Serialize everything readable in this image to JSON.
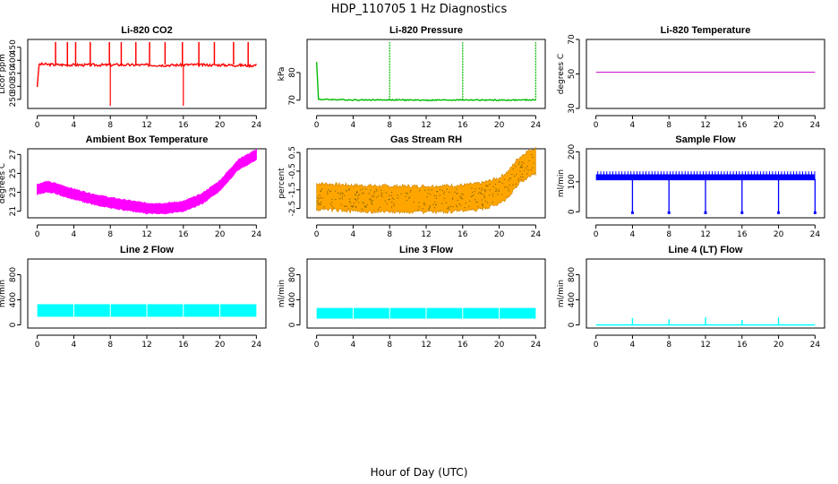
{
  "title": "HDP_110705  1 Hz Diagnostics",
  "xlabel": "Hour of Day (UTC)",
  "chart_data": [
    {
      "type": "line",
      "title": "Li-820 CO2",
      "ylabel": "Licor ppm",
      "color": "#ff0000",
      "xlim": [
        0,
        24
      ],
      "ylim": [
        215,
        480
      ],
      "xticks": [
        0,
        4,
        8,
        12,
        16,
        20,
        24
      ],
      "yticks": [
        250,
        300,
        350,
        400,
        450
      ],
      "series": [
        {
          "x": [
            0,
            0.2,
            2,
            4,
            6,
            8,
            8.5,
            10,
            12,
            14,
            16,
            16.5,
            18,
            20,
            22,
            23.5,
            24
          ],
          "y": [
            300,
            385,
            383,
            382,
            382,
            382,
            383,
            382,
            382,
            381,
            382,
            383,
            382,
            382,
            381,
            380,
            382
          ]
        }
      ]
    },
    {
      "type": "line",
      "title": "Li-820 Pressure",
      "ylabel": "kPa",
      "color": "#00bb00",
      "xlim": [
        0,
        24
      ],
      "ylim": [
        67,
        92
      ],
      "xticks": [
        0,
        4,
        8,
        12,
        16,
        20,
        24
      ],
      "yticks": [
        70,
        80
      ],
      "series": [
        {
          "x": [
            0,
            0.2,
            4,
            8,
            12,
            16,
            20,
            24
          ],
          "y": [
            84,
            70.3,
            70.1,
            70.1,
            70.0,
            70.1,
            70.0,
            70.1
          ]
        }
      ]
    },
    {
      "type": "line",
      "title": "Li-820 Temperature",
      "ylabel": "degrees C",
      "color": "#cc00cc",
      "xlim": [
        0,
        24
      ],
      "ylim": [
        30,
        70
      ],
      "xticks": [
        0,
        4,
        8,
        12,
        16,
        20,
        24
      ],
      "yticks": [
        30,
        50,
        70
      ],
      "series": [
        {
          "x": [
            0,
            24
          ],
          "y": [
            51,
            51
          ]
        }
      ]
    },
    {
      "type": "line",
      "title": "Ambient Box Temperature",
      "ylabel": "degrees C",
      "color": "#ff00ff",
      "xlim": [
        0,
        24
      ],
      "ylim": [
        20.3,
        27.6
      ],
      "xticks": [
        0,
        4,
        8,
        12,
        16,
        20,
        24
      ],
      "yticks": [
        21,
        23,
        25,
        27
      ],
      "series": [
        {
          "x": [
            0,
            1,
            2,
            4,
            6,
            8,
            10,
            12,
            14,
            16,
            18,
            20,
            22,
            24
          ],
          "y": [
            23.3,
            23.6,
            23.4,
            22.8,
            22.3,
            21.9,
            21.6,
            21.3,
            21.3,
            21.5,
            22.3,
            23.7,
            25.9,
            27.0
          ]
        }
      ]
    },
    {
      "type": "line",
      "title": "Gas Stream RH",
      "ylabel": "percent",
      "color": "#ffa500",
      "xlim": [
        0,
        24
      ],
      "ylim": [
        -3.0,
        0.7
      ],
      "xticks": [
        0,
        4,
        8,
        12,
        16,
        20,
        24
      ],
      "yticks": [
        -2.5,
        -1.5,
        -0.5,
        0.5
      ],
      "series": [
        {
          "x": [
            0,
            4,
            8,
            12,
            16,
            18,
            20,
            21,
            22,
            23,
            24
          ],
          "y": [
            -1.85,
            -1.95,
            -2.0,
            -2.0,
            -1.95,
            -1.85,
            -1.55,
            -1.2,
            -0.55,
            -0.15,
            0.05
          ]
        }
      ]
    },
    {
      "type": "line",
      "title": "Sample Flow",
      "ylabel": "ml/min",
      "color": "#0000ff",
      "xlim": [
        0,
        24
      ],
      "ylim": [
        -20,
        210
      ],
      "xticks": [
        0,
        4,
        8,
        12,
        16,
        20,
        24
      ],
      "yticks": [
        0,
        100,
        200
      ],
      "series": [
        {
          "x": [
            0,
            4,
            8,
            12,
            16,
            20,
            24
          ],
          "y": [
            115,
            110,
            110,
            110,
            110,
            110,
            110
          ]
        }
      ]
    },
    {
      "type": "area",
      "title": "Line 2 Flow",
      "ylabel": "ml/min",
      "color": "#00ffff",
      "xlim": [
        0,
        24
      ],
      "ylim": [
        -50,
        1050
      ],
      "xticks": [
        0,
        4,
        8,
        12,
        16,
        20,
        24
      ],
      "yticks": [
        0,
        400,
        800
      ],
      "series": [
        {
          "x": [
            0,
            24
          ],
          "y_low": [
            130,
            130
          ],
          "y_high": [
            330,
            330
          ]
        }
      ]
    },
    {
      "type": "area",
      "title": "Line 3 Flow",
      "ylabel": "ml/min",
      "color": "#00ffff",
      "xlim": [
        0,
        24
      ],
      "ylim": [
        -50,
        1050
      ],
      "xticks": [
        0,
        4,
        8,
        12,
        16,
        20,
        24
      ],
      "yticks": [
        0,
        400,
        800
      ],
      "series": [
        {
          "x": [
            0,
            24
          ],
          "y_low": [
            100,
            100
          ],
          "y_high": [
            270,
            270
          ]
        }
      ]
    },
    {
      "type": "line",
      "title": "Line 4 (LT) Flow",
      "ylabel": "ml/min",
      "color": "#00ffff",
      "xlim": [
        0,
        24
      ],
      "ylim": [
        -50,
        1050
      ],
      "xticks": [
        0,
        4,
        8,
        12,
        16,
        20,
        24
      ],
      "yticks": [
        0,
        400,
        800
      ],
      "series": [
        {
          "x": [
            0,
            24
          ],
          "y": [
            0,
            0
          ]
        }
      ]
    }
  ]
}
